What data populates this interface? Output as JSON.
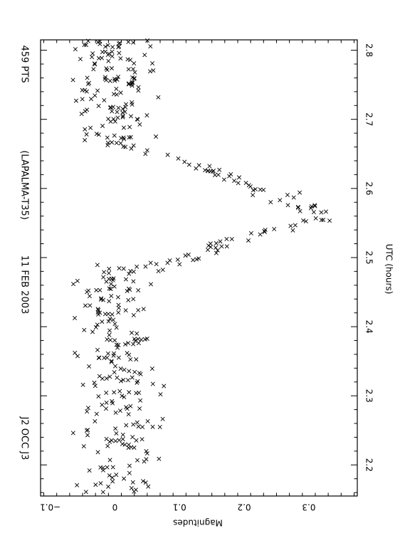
{
  "chart_data": {
    "type": "scatter",
    "title_parts": [
      "J2 OCC J3",
      "11 FEB 2003",
      "(LAPALMA-T35)",
      "459 PTS"
    ],
    "xlabel": "UTC (hours)",
    "ylabel": "Magnitudes",
    "xlim": [
      2.155,
      2.815
    ],
    "ylim": [
      -0.115,
      0.375
    ],
    "x_ticks": [
      "2.2",
      "2.3",
      "2.4",
      "2.5",
      "2.6",
      "2.7",
      "2.8"
    ],
    "y_ticks": [
      "−0.1",
      "0",
      "0.1",
      "0.2",
      "0.3"
    ],
    "y_tick_values": [
      -0.1,
      0,
      0.1,
      0.2,
      0.3
    ],
    "x_tick_values": [
      2.2,
      2.3,
      2.4,
      2.5,
      2.6,
      2.7,
      2.8
    ],
    "marker": "x",
    "grid": false,
    "orientation": "rotated 90° (x axis vertical, increasing upward; magnitude axis horizontal, increasing rightward)",
    "segments": [
      {
        "x_start": 2.16,
        "x_end": 2.49,
        "count": 230,
        "mean": 0.005,
        "spread": 0.05
      },
      {
        "x_start": 2.49,
        "x_end": 2.53,
        "count": 25,
        "mean_start": 0.09,
        "mean_end": 0.2,
        "spread": 0.03
      },
      {
        "x_start": 2.53,
        "x_end": 2.555,
        "count": 14,
        "mean_start": 0.2,
        "mean_end": 0.32,
        "spread": 0.03
      },
      {
        "x_start": 2.555,
        "x_end": 2.58,
        "count": 12,
        "mean_start": 0.32,
        "mean_end": 0.28,
        "spread": 0.03
      },
      {
        "x_start": 2.58,
        "x_end": 2.62,
        "count": 20,
        "mean_start": 0.28,
        "mean_end": 0.16,
        "spread": 0.03
      },
      {
        "x_start": 2.62,
        "x_end": 2.66,
        "count": 18,
        "mean_start": 0.16,
        "mean_end": 0.05,
        "spread": 0.02
      },
      {
        "x_start": 2.66,
        "x_end": 2.815,
        "count": 140,
        "mean": 0.0,
        "spread": 0.05
      }
    ]
  }
}
